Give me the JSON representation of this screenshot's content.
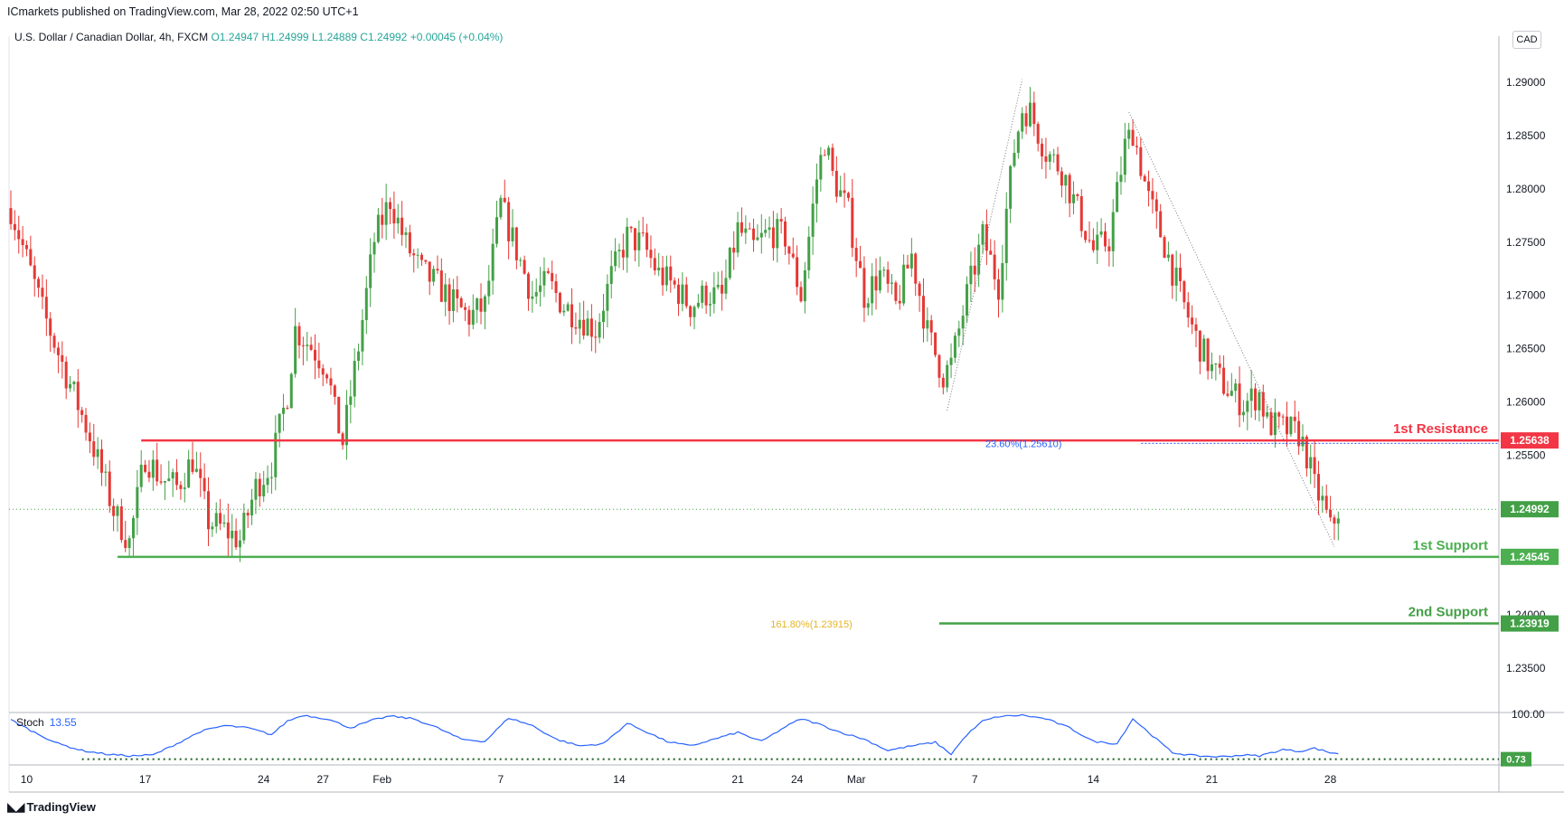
{
  "header": {
    "publisher": "ICmarkets published on TradingView.com, Mar 28, 2022 02:50 UTC+1",
    "symbol": "U.S. Dollar / Canadian Dollar, 4h, FXCM",
    "open": "O1.24947",
    "high": "H1.24999",
    "low": "L1.24889",
    "close": "C1.24992",
    "change": "+0.00045 (+0.04%)",
    "currency_button": "CAD"
  },
  "footer": {
    "brand": "TradingView"
  },
  "colors": {
    "up": "#26a69a",
    "upBody": "#43a047",
    "down": "#e53935",
    "resistance": "#f23645",
    "support": "#4caf50",
    "stoch": "#2962ff",
    "fib": "#e6b422"
  },
  "chart_data": {
    "type": "candlestick",
    "price_axis": {
      "min": 1.231,
      "max": 1.2935,
      "ticks": [
        "1.29000",
        "1.28500",
        "1.28000",
        "1.27500",
        "1.27000",
        "1.26500",
        "1.26000",
        "1.25500",
        "1.24000",
        "1.23500"
      ]
    },
    "time_axis": {
      "labels": [
        "10",
        "17",
        "24",
        "27",
        "Feb",
        "7",
        "14",
        "21",
        "24",
        "Mar",
        "7",
        "14",
        "21",
        "28"
      ],
      "label_index": [
        4,
        34,
        64,
        79,
        94,
        124,
        154,
        184,
        199,
        214,
        244,
        274,
        304,
        334
      ]
    },
    "last_price": {
      "value": 1.24992,
      "label": "1.24992"
    },
    "levels": [
      {
        "name": "1st Resistance",
        "price": 1.25638,
        "label": "1.25638",
        "kind": "resistance",
        "from_index": 33
      },
      {
        "name": "1st Support",
        "price": 1.24545,
        "label": "1.24545",
        "kind": "support",
        "from_index": 27
      },
      {
        "name": "2nd Support",
        "price": 1.23919,
        "label": "1.23919",
        "kind": "support2",
        "from_index": 235
      }
    ],
    "fib_labels": [
      {
        "text": "23.60%(1.25610)",
        "price": 1.2561,
        "index": 266,
        "color": "#2962ff"
      },
      {
        "text": "161.80%(1.23915)",
        "price": 1.23915,
        "index": 213,
        "color": "#e6b422"
      }
    ],
    "trend_lines": [
      {
        "from_index": 237,
        "from_price": 1.2592,
        "to_index": 256,
        "to_price": 1.2903
      },
      {
        "from_index": 283,
        "from_price": 1.2872,
        "to_index": 335,
        "to_price": 1.2464
      }
    ],
    "stoch": {
      "label": "Stoch",
      "value": "13.55",
      "axis_labels": [
        "100.00"
      ],
      "min_label": "0.73",
      "range": [
        0,
        100
      ]
    },
    "close_path": [
      [
        0,
        1.2782
      ],
      [
        8,
        1.2686
      ],
      [
        14,
        1.2626
      ],
      [
        20,
        1.2568
      ],
      [
        26,
        1.2498
      ],
      [
        30,
        1.2468
      ],
      [
        34,
        1.2549
      ],
      [
        38,
        1.2528
      ],
      [
        42,
        1.252
      ],
      [
        46,
        1.2546
      ],
      [
        50,
        1.2488
      ],
      [
        54,
        1.248
      ],
      [
        58,
        1.247
      ],
      [
        62,
        1.252
      ],
      [
        66,
        1.2542
      ],
      [
        70,
        1.2608
      ],
      [
        72,
        1.2668
      ],
      [
        76,
        1.2652
      ],
      [
        80,
        1.2632
      ],
      [
        82,
        1.259
      ],
      [
        84,
        1.2562
      ],
      [
        88,
        1.2652
      ],
      [
        92,
        1.2752
      ],
      [
        96,
        1.279
      ],
      [
        100,
        1.2748
      ],
      [
        104,
        1.2722
      ],
      [
        108,
        1.271
      ],
      [
        112,
        1.2692
      ],
      [
        116,
        1.268
      ],
      [
        120,
        1.269
      ],
      [
        124,
        1.2785
      ],
      [
        128,
        1.2742
      ],
      [
        132,
        1.27
      ],
      [
        136,
        1.2712
      ],
      [
        140,
        1.269
      ],
      [
        144,
        1.268
      ],
      [
        148,
        1.2668
      ],
      [
        152,
        1.2718
      ],
      [
        156,
        1.2755
      ],
      [
        160,
        1.2748
      ],
      [
        164,
        1.272
      ],
      [
        168,
        1.2708
      ],
      [
        172,
        1.269
      ],
      [
        176,
        1.2702
      ],
      [
        180,
        1.2698
      ],
      [
        184,
        1.2762
      ],
      [
        188,
        1.2745
      ],
      [
        192,
        1.276
      ],
      [
        196,
        1.2755
      ],
      [
        200,
        1.27
      ],
      [
        204,
        1.281
      ],
      [
        206,
        1.2845
      ],
      [
        208,
        1.2812
      ],
      [
        212,
        1.2778
      ],
      [
        216,
        1.27
      ],
      [
        220,
        1.272
      ],
      [
        224,
        1.269
      ],
      [
        228,
        1.2738
      ],
      [
        232,
        1.2665
      ],
      [
        236,
        1.2625
      ],
      [
        238,
        1.2635
      ],
      [
        242,
        1.27
      ],
      [
        246,
        1.2755
      ],
      [
        250,
        1.271
      ],
      [
        252,
        1.278
      ],
      [
        254,
        1.2838
      ],
      [
        256,
        1.2875
      ],
      [
        258,
        1.2872
      ],
      [
        262,
        1.2835
      ],
      [
        266,
        1.2818
      ],
      [
        270,
        1.278
      ],
      [
        274,
        1.2742
      ],
      [
        278,
        1.2752
      ],
      [
        282,
        1.284
      ],
      [
        284,
        1.2855
      ],
      [
        288,
        1.279
      ],
      [
        292,
        1.2748
      ],
      [
        296,
        1.27
      ],
      [
        300,
        1.266
      ],
      [
        304,
        1.263
      ],
      [
        308,
        1.2612
      ],
      [
        312,
        1.2598
      ],
      [
        316,
        1.2608
      ],
      [
        318,
        1.258
      ],
      [
        322,
        1.2575
      ],
      [
        326,
        1.257
      ],
      [
        328,
        1.255
      ],
      [
        330,
        1.252
      ],
      [
        332,
        1.2505
      ],
      [
        334,
        1.248
      ],
      [
        336,
        1.2499
      ]
    ],
    "stoch_path": [
      [
        0,
        88
      ],
      [
        6,
        60
      ],
      [
        12,
        35
      ],
      [
        18,
        20
      ],
      [
        24,
        12
      ],
      [
        30,
        8
      ],
      [
        36,
        10
      ],
      [
        42,
        35
      ],
      [
        48,
        62
      ],
      [
        54,
        75
      ],
      [
        60,
        70
      ],
      [
        66,
        55
      ],
      [
        70,
        85
      ],
      [
        74,
        98
      ],
      [
        80,
        90
      ],
      [
        86,
        70
      ],
      [
        92,
        88
      ],
      [
        96,
        96
      ],
      [
        102,
        90
      ],
      [
        108,
        70
      ],
      [
        114,
        45
      ],
      [
        120,
        40
      ],
      [
        126,
        92
      ],
      [
        132,
        75
      ],
      [
        138,
        45
      ],
      [
        144,
        30
      ],
      [
        150,
        35
      ],
      [
        156,
        80
      ],
      [
        160,
        65
      ],
      [
        166,
        40
      ],
      [
        172,
        30
      ],
      [
        178,
        45
      ],
      [
        184,
        60
      ],
      [
        190,
        40
      ],
      [
        196,
        72
      ],
      [
        200,
        90
      ],
      [
        204,
        80
      ],
      [
        210,
        60
      ],
      [
        216,
        45
      ],
      [
        222,
        20
      ],
      [
        228,
        30
      ],
      [
        234,
        38
      ],
      [
        238,
        12
      ],
      [
        242,
        55
      ],
      [
        246,
        85
      ],
      [
        250,
        95
      ],
      [
        256,
        98
      ],
      [
        262,
        90
      ],
      [
        268,
        70
      ],
      [
        274,
        40
      ],
      [
        280,
        35
      ],
      [
        284,
        90
      ],
      [
        288,
        60
      ],
      [
        294,
        15
      ],
      [
        300,
        8
      ],
      [
        306,
        6
      ],
      [
        312,
        10
      ],
      [
        316,
        8
      ],
      [
        322,
        22
      ],
      [
        326,
        18
      ],
      [
        330,
        25
      ],
      [
        334,
        15
      ],
      [
        336,
        13.55
      ]
    ]
  }
}
